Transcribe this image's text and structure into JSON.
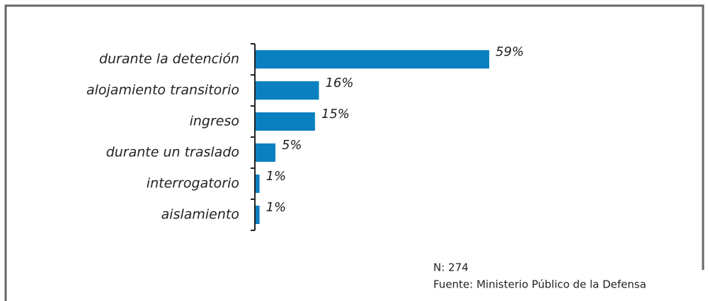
{
  "chart_data": {
    "type": "bar",
    "orientation": "horizontal",
    "categories": [
      "durante la detención",
      "alojamiento transitorio",
      "ingreso",
      "durante un traslado",
      "interrogatorio",
      "aislamiento"
    ],
    "values": [
      59,
      16,
      15,
      5,
      1,
      1
    ],
    "value_labels": [
      "59%",
      "16%",
      "15%",
      "5%",
      "1%",
      "1%"
    ],
    "color": "#0a80c0",
    "notes": [
      "N: 274",
      "Fuente: Ministerio Público de la Defensa"
    ]
  }
}
